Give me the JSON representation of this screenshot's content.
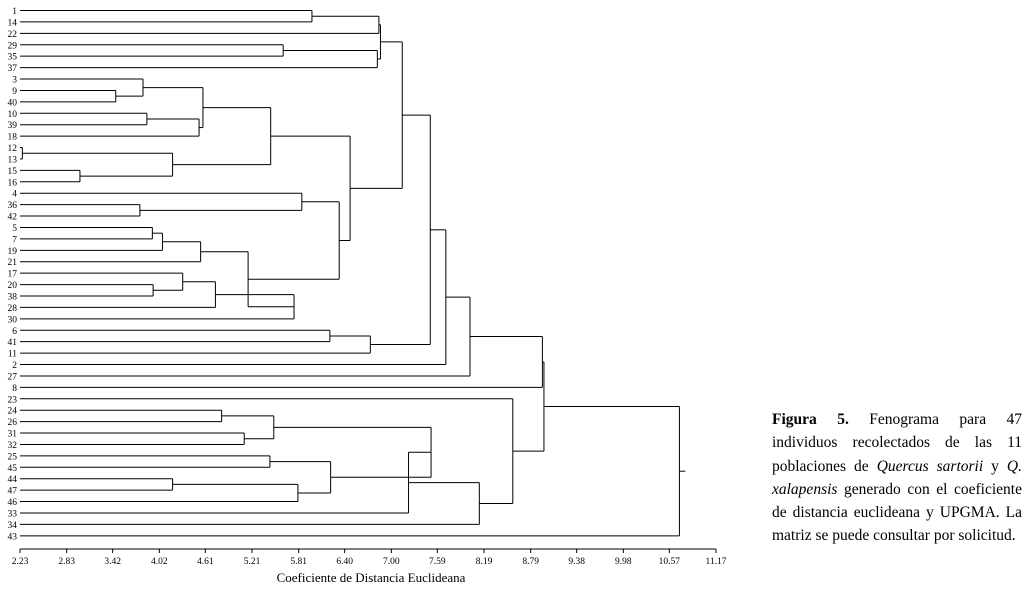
{
  "chart_data": {
    "type": "dendrogram",
    "method": "UPGMA",
    "xlabel": "Coeficiente de Distancia Euclideana",
    "xlim": [
      2.23,
      11.17
    ],
    "ticks": [
      "2.23",
      "2.83",
      "3.42",
      "4.02",
      "4.61",
      "5.21",
      "5.81",
      "6.40",
      "7.00",
      "7.59",
      "8.19",
      "8.79",
      "9.38",
      "9.98",
      "10.57",
      "11.17"
    ],
    "leaves": [
      "1",
      "14",
      "22",
      "29",
      "35",
      "37",
      "3",
      "9",
      "40",
      "10",
      "39",
      "18",
      "12",
      "13",
      "15",
      "16",
      "4",
      "36",
      "42",
      "5",
      "7",
      "19",
      "21",
      "17",
      "20",
      "38",
      "28",
      "30",
      "6",
      "41",
      "11",
      "2",
      "27",
      "8",
      "23",
      "24",
      "26",
      "31",
      "32",
      "25",
      "45",
      "44",
      "47",
      "46",
      "33",
      "34",
      "43"
    ],
    "merges": [
      {
        "a": "L0",
        "b": "L1",
        "h": 5.98
      },
      {
        "a": "N0",
        "b": "L2",
        "h": 6.84
      },
      {
        "a": "L3",
        "b": "L4",
        "h": 5.61
      },
      {
        "a": "N2",
        "b": "L5",
        "h": 6.82
      },
      {
        "a": "N1",
        "b": "N3",
        "h": 6.86
      },
      {
        "a": "L7",
        "b": "L8",
        "h": 3.46
      },
      {
        "a": "L6",
        "b": "N5",
        "h": 3.81
      },
      {
        "a": "L9",
        "b": "L10",
        "h": 3.86
      },
      {
        "a": "N7",
        "b": "L11",
        "h": 4.53
      },
      {
        "a": "N6",
        "b": "N8",
        "h": 4.58
      },
      {
        "a": "L12",
        "b": "L13",
        "h": 2.26
      },
      {
        "a": "L14",
        "b": "L15",
        "h": 3.0
      },
      {
        "a": "N10",
        "b": "N11",
        "h": 4.19
      },
      {
        "a": "N9",
        "b": "N12",
        "h": 5.45
      },
      {
        "a": "L17",
        "b": "L18",
        "h": 3.77
      },
      {
        "a": "L16",
        "b": "N14",
        "h": 5.85
      },
      {
        "a": "L19",
        "b": "L20",
        "h": 3.93
      },
      {
        "a": "N16",
        "b": "L21",
        "h": 4.06
      },
      {
        "a": "N17",
        "b": "L22",
        "h": 4.55
      },
      {
        "a": "L24",
        "b": "L25",
        "h": 3.94
      },
      {
        "a": "L23",
        "b": "N19",
        "h": 4.32
      },
      {
        "a": "N20",
        "b": "L26",
        "h": 4.74
      },
      {
        "a": "N21",
        "b": "L27",
        "h": 5.75
      },
      {
        "a": "N18",
        "b": "N22",
        "h": 5.16
      },
      {
        "a": "N15",
        "b": "N23",
        "h": 6.33
      },
      {
        "a": "N13",
        "b": "N24",
        "h": 6.47
      },
      {
        "a": "N4",
        "b": "N25",
        "h": 7.14
      },
      {
        "a": "L28",
        "b": "L29",
        "h": 6.21
      },
      {
        "a": "N27",
        "b": "L30",
        "h": 6.73
      },
      {
        "a": "N26",
        "b": "N28",
        "h": 7.5
      },
      {
        "a": "N29",
        "b": "L31",
        "h": 7.7
      },
      {
        "a": "N30",
        "b": "L32",
        "h": 8.01
      },
      {
        "a": "L35",
        "b": "L36",
        "h": 4.82
      },
      {
        "a": "L37",
        "b": "L38",
        "h": 5.11
      },
      {
        "a": "N32",
        "b": "N33",
        "h": 5.49
      },
      {
        "a": "L39",
        "b": "L40",
        "h": 5.44
      },
      {
        "a": "L41",
        "b": "L42",
        "h": 4.19
      },
      {
        "a": "N36",
        "b": "L43",
        "h": 5.8
      },
      {
        "a": "N35",
        "b": "N37",
        "h": 6.22
      },
      {
        "a": "N34",
        "b": "N38",
        "h": 7.51
      },
      {
        "a": "N39",
        "b": "L44",
        "h": 7.22
      },
      {
        "a": "N40",
        "b": "L45",
        "h": 8.13
      },
      {
        "a": "L34",
        "b": "N41",
        "h": 8.56
      },
      {
        "a": "N31",
        "b": "L33",
        "h": 8.94
      },
      {
        "a": "N43",
        "b": "N42",
        "h": 8.96
      },
      {
        "a": "N44",
        "b": "L46",
        "h": 10.7
      }
    ]
  },
  "caption": {
    "label": "Figura 5.",
    "t1": " Fenograma para 47 individuos recolectados de las 11 poblaciones de ",
    "species1": "Quercus sartorii",
    "t2": " y ",
    "species2": "Q. xalapensis",
    "t3": " generado con el coeficiente de distancia euclideana y UPGMA. La matriz se puede consultar por solicitud."
  }
}
